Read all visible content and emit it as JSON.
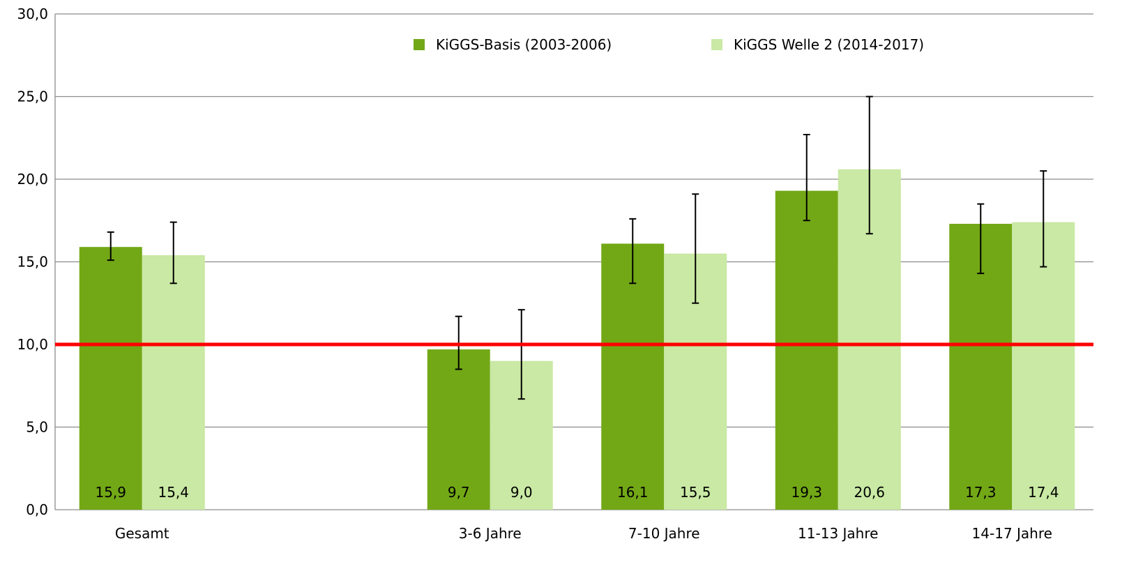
{
  "chart_data": {
    "type": "bar",
    "categories": [
      "Gesamt",
      "",
      "3-6 Jahre",
      "7-10 Jahre",
      "11-13 Jahre",
      "14-17 Jahre"
    ],
    "series": [
      {
        "name": "KiGGS-Basis (2003-2006)",
        "color": "#72a816",
        "values": [
          15.9,
          null,
          9.7,
          16.1,
          19.3,
          17.3
        ],
        "labels": [
          "15,9",
          "",
          "9,7",
          "16,1",
          "19,3",
          "17,3"
        ],
        "error_low": [
          15.1,
          null,
          8.5,
          13.7,
          17.5,
          14.3
        ],
        "error_high": [
          16.8,
          null,
          11.7,
          17.6,
          22.7,
          18.5
        ]
      },
      {
        "name": "KiGGS Welle 2 (2014-2017)",
        "color": "#c9e9a4",
        "values": [
          15.4,
          null,
          9.0,
          15.5,
          20.6,
          17.4
        ],
        "labels": [
          "15,4",
          "",
          "9,0",
          "15,5",
          "20,6",
          "17,4"
        ],
        "error_low": [
          13.7,
          null,
          6.7,
          12.5,
          16.7,
          14.7
        ],
        "error_high": [
          17.4,
          null,
          12.1,
          19.1,
          25.0,
          20.5
        ]
      }
    ],
    "reference_line": {
      "value": 10.0,
      "color": "#ff0000"
    },
    "ylim": [
      0,
      30
    ],
    "yticks": [
      0,
      5,
      10,
      15,
      20,
      25,
      30
    ],
    "ytick_labels": [
      "0,0",
      "5,0",
      "10,0",
      "15,0",
      "20,0",
      "25,0",
      "30,0"
    ],
    "grid": true,
    "legend_position": "top-center",
    "title": "",
    "xlabel": "",
    "ylabel": ""
  }
}
